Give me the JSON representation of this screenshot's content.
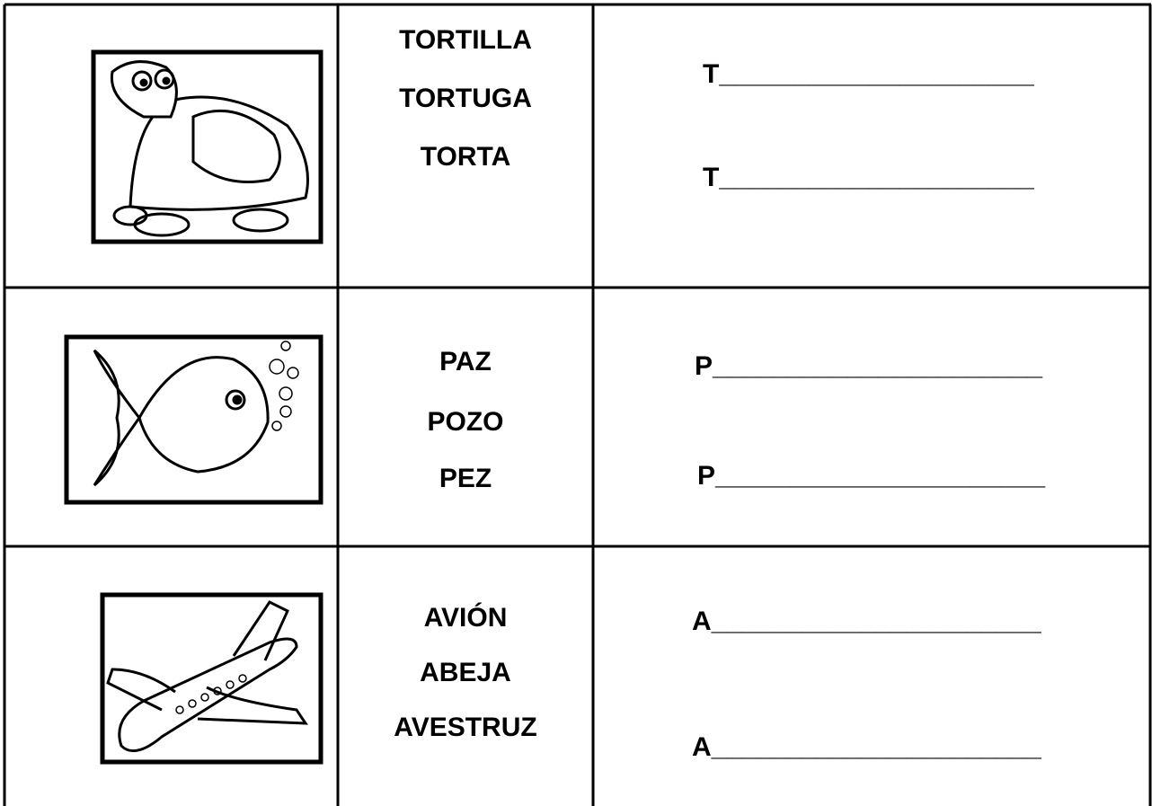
{
  "rows": [
    {
      "words": [
        "TORTILLA",
        "TORTUGA",
        "TORTA"
      ],
      "answers": [
        "T_____________________",
        "T_____________________"
      ]
    },
    {
      "words": [
        "PAZ",
        "POZO",
        "PEZ"
      ],
      "answers": [
        "P______________________",
        "P______________________"
      ]
    },
    {
      "words": [
        "AVIÓN",
        "ABEJA",
        "AVESTRUZ"
      ],
      "answers": [
        "A______________________",
        "A______________________"
      ]
    }
  ]
}
